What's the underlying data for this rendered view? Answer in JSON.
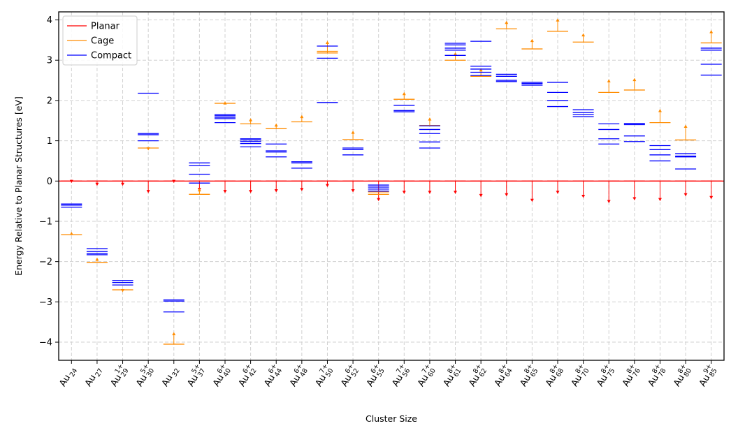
{
  "chart_data": {
    "type": "energy-level",
    "xlabel": "Cluster Size",
    "ylabel": "Energy Relative to Planar Structures [eV]",
    "ylim": [
      -4.45,
      4.2
    ],
    "yticks": [
      -4,
      -3,
      -2,
      -1,
      0,
      1,
      2,
      3,
      4
    ],
    "ytick_labels": [
      "−4",
      "−3",
      "−2",
      "−1",
      "0",
      "1",
      "2",
      "3",
      "4"
    ],
    "grid": true,
    "legend_position": "top-left",
    "colors": {
      "Planar": "#ff0000",
      "Cage": "#ff8c00",
      "Compact": "#0000ff"
    },
    "legend": [
      "Planar",
      "Cage",
      "Compact"
    ],
    "categories": [
      {
        "base": "Au",
        "sub": "24",
        "sup": ""
      },
      {
        "base": "Au",
        "sub": "27",
        "sup": ""
      },
      {
        "base": "Au",
        "sub": "29",
        "sup": "1+"
      },
      {
        "base": "Au",
        "sub": "30",
        "sup": "5+"
      },
      {
        "base": "Au",
        "sub": "32",
        "sup": ""
      },
      {
        "base": "Au",
        "sub": "37",
        "sup": "5+"
      },
      {
        "base": "Au",
        "sub": "40",
        "sup": "6+"
      },
      {
        "base": "Au",
        "sub": "42",
        "sup": "6+"
      },
      {
        "base": "Au",
        "sub": "44",
        "sup": "6+"
      },
      {
        "base": "Au",
        "sub": "48",
        "sup": "6+"
      },
      {
        "base": "Au",
        "sub": "50",
        "sup": "7+"
      },
      {
        "base": "Au",
        "sub": "52",
        "sup": "6+"
      },
      {
        "base": "Au",
        "sub": "55",
        "sup": "6+"
      },
      {
        "base": "Au",
        "sub": "56",
        "sup": "7+"
      },
      {
        "base": "Au",
        "sub": "60",
        "sup": "7+"
      },
      {
        "base": "Au",
        "sub": "61",
        "sup": "8+"
      },
      {
        "base": "Au",
        "sub": "62",
        "sup": "8+"
      },
      {
        "base": "Au",
        "sub": "64",
        "sup": "8+"
      },
      {
        "base": "Au",
        "sub": "65",
        "sup": "8+"
      },
      {
        "base": "Au",
        "sub": "68",
        "sup": "8+"
      },
      {
        "base": "Au",
        "sub": "70",
        "sup": "8+"
      },
      {
        "base": "Au",
        "sub": "75",
        "sup": "8+"
      },
      {
        "base": "Au",
        "sub": "76",
        "sup": "8+"
      },
      {
        "base": "Au",
        "sub": "78",
        "sup": "8+"
      },
      {
        "base": "Au",
        "sub": "80",
        "sup": "8+"
      },
      {
        "base": "Au",
        "sub": "85",
        "sup": "9+"
      }
    ],
    "series": [
      {
        "name": "Planar",
        "levels": [
          [
            0
          ],
          [
            0
          ],
          [
            0
          ],
          [
            0
          ],
          [
            0
          ],
          [
            0
          ],
          [
            0
          ],
          [
            0
          ],
          [
            0
          ],
          [
            0
          ],
          [
            0
          ],
          [
            0
          ],
          [
            0
          ],
          [
            0
          ],
          [
            0
          ],
          [
            0
          ],
          [
            0
          ],
          [
            0
          ],
          [
            0
          ],
          [
            0
          ],
          [
            0
          ],
          [
            0
          ],
          [
            0
          ],
          [
            0
          ],
          [
            0
          ],
          [
            0
          ]
        ],
        "arrows": [
          -0.05,
          -0.12,
          -0.12,
          -0.3,
          -0.05,
          -0.25,
          -0.3,
          -0.3,
          -0.28,
          -0.25,
          -0.15,
          -0.28,
          -0.5,
          -0.32,
          -0.32,
          -0.32,
          -0.4,
          -0.38,
          -0.52,
          -0.32,
          -0.42,
          -0.55,
          -0.48,
          -0.5,
          -0.38,
          -0.45
        ]
      },
      {
        "name": "Cage",
        "levels": [
          [
            -1.33
          ],
          [
            -2.02
          ],
          [
            -2.7
          ],
          [
            0.82
          ],
          [
            -4.05
          ],
          [
            -0.33
          ],
          [
            1.93
          ],
          [
            1.42
          ],
          [
            1.3
          ],
          [
            1.47
          ],
          [
            3.18,
            3.22
          ],
          [
            1.03
          ],
          [
            -0.27,
            -0.33
          ],
          [
            2.03
          ],
          [
            1.38
          ],
          [
            3.0
          ],
          [
            2.6
          ],
          [
            3.78
          ],
          [
            3.28
          ],
          [
            3.72
          ],
          [
            3.45
          ],
          [
            2.2
          ],
          [
            2.26
          ],
          [
            1.45
          ],
          [
            1.02
          ],
          [
            3.43
          ]
        ],
        "arrows": [
          0.07,
          0.12,
          -0.06,
          -0.06,
          0.3,
          0.15,
          0.05,
          0.14,
          0.13,
          0.17,
          0.3,
          0.22,
          0.0,
          0.18,
          0.2,
          0.2,
          0.2,
          0.2,
          0.25,
          0.32,
          0.22,
          0.33,
          0.3,
          0.34,
          0.38,
          0.32
        ]
      },
      {
        "name": "Compact",
        "levels": [
          [
            -0.57,
            -0.6,
            -0.65
          ],
          [
            -1.68,
            -1.75,
            -1.8,
            -1.83
          ],
          [
            -2.47,
            -2.52,
            -2.58
          ],
          [
            2.18,
            1.18,
            1.15,
            1.0
          ],
          [
            -2.95,
            -2.98,
            -3.25
          ],
          [
            0.45,
            0.38,
            0.17,
            -0.05
          ],
          [
            1.65,
            1.62,
            1.58,
            1.55,
            1.45
          ],
          [
            1.05,
            1.02,
            0.98,
            0.93,
            0.85
          ],
          [
            0.92,
            0.75,
            0.72,
            0.6
          ],
          [
            0.48,
            0.45,
            0.32
          ],
          [
            3.35,
            3.05,
            1.95
          ],
          [
            0.82,
            0.78,
            0.65
          ],
          [
            -0.1,
            -0.15,
            -0.2,
            -0.25
          ],
          [
            1.88,
            1.75,
            1.72
          ],
          [
            1.37,
            1.28,
            1.18,
            0.97,
            0.82
          ],
          [
            3.42,
            3.38,
            3.3,
            3.25,
            3.12
          ],
          [
            3.47,
            2.85,
            2.78,
            2.7,
            2.62
          ],
          [
            2.65,
            2.6,
            2.5,
            2.47
          ],
          [
            2.45,
            2.42,
            2.38
          ],
          [
            2.45,
            2.2,
            2.0,
            1.85
          ],
          [
            1.77,
            1.7,
            1.65,
            1.6
          ],
          [
            1.42,
            1.28,
            1.05,
            0.92
          ],
          [
            1.43,
            1.4,
            1.12,
            0.98
          ],
          [
            0.88,
            0.78,
            0.65,
            0.5
          ],
          [
            0.68,
            0.62,
            0.6,
            0.3
          ],
          [
            3.3,
            3.25,
            2.9,
            2.63
          ]
        ]
      }
    ]
  }
}
